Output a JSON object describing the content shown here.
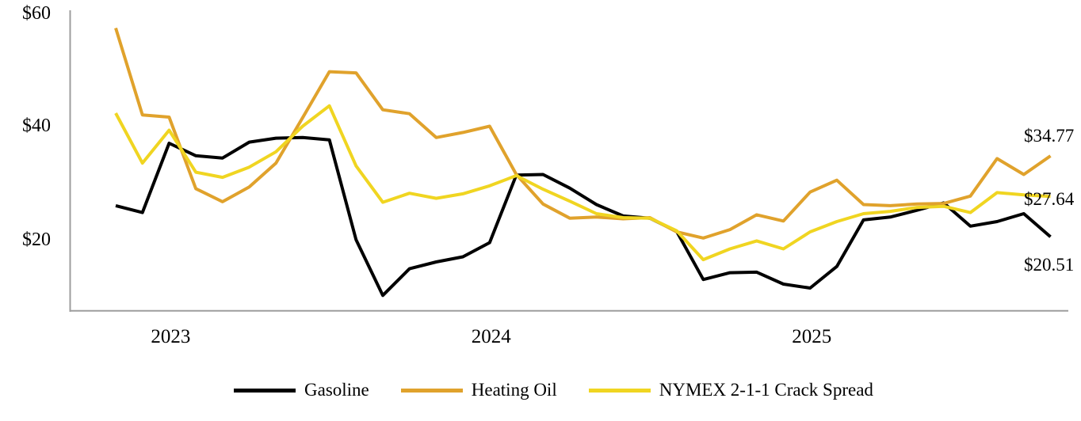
{
  "chart_data": {
    "type": "line",
    "title": "",
    "xlabel": "",
    "ylabel": "",
    "grid": false,
    "legend_position": "bottom",
    "ylim": [
      7.3,
      60
    ],
    "y_ticks": [
      {
        "label": "$60",
        "value": 60
      },
      {
        "label": "$40",
        "value": 40
      },
      {
        "label": "$20",
        "value": 20
      }
    ],
    "x_axis_ticks": [
      {
        "label": "2023",
        "month_index": 2
      },
      {
        "label": "2024",
        "month_index": 14
      },
      {
        "label": "2025",
        "month_index": 26
      }
    ],
    "x": [
      "2022-11",
      "2022-12",
      "2023-01",
      "2023-02",
      "2023-03",
      "2023-04",
      "2023-05",
      "2023-06",
      "2023-07",
      "2023-08",
      "2023-09",
      "2023-10",
      "2023-11",
      "2023-12",
      "2024-01",
      "2024-02",
      "2024-03",
      "2024-04",
      "2024-05",
      "2024-06",
      "2024-07",
      "2024-08",
      "2024-09",
      "2024-10",
      "2024-11",
      "2024-12",
      "2025-01",
      "2025-02",
      "2025-03",
      "2025-04",
      "2025-05",
      "2025-06",
      "2025-07",
      "2025-08",
      "2025-09",
      "2025-10"
    ],
    "series": [
      {
        "name": "Gasoline",
        "color": "#000000",
        "end_label": "$20.51",
        "values": [
          26.0,
          24.8,
          37.0,
          34.8,
          34.4,
          37.2,
          37.9,
          38.0,
          37.6,
          20.0,
          10.2,
          14.9,
          16.1,
          17.0,
          19.5,
          31.4,
          31.5,
          29.1,
          26.2,
          24.2,
          23.8,
          21.5,
          13.0,
          14.2,
          14.3,
          12.2,
          11.5,
          15.3,
          23.5,
          24.0,
          25.2,
          26.5,
          22.4,
          23.2,
          24.6,
          20.51
        ]
      },
      {
        "name": "Heating Oil",
        "color": "#E0A22C",
        "end_label": "$34.77",
        "values": [
          57.3,
          42.0,
          41.6,
          29.0,
          26.7,
          29.3,
          33.5,
          41.5,
          49.6,
          49.4,
          42.9,
          42.2,
          38.0,
          38.9,
          40.0,
          31.5,
          26.3,
          23.8,
          24.0,
          23.7,
          23.9,
          21.4,
          20.3,
          21.8,
          24.4,
          23.3,
          28.4,
          30.5,
          26.2,
          26.0,
          26.3,
          26.4,
          27.7,
          34.3,
          31.5,
          34.77
        ]
      },
      {
        "name": "NYMEX 2-1-1 Crack Spread",
        "color": "#F0D521",
        "end_label": "$27.64",
        "values": [
          42.3,
          33.5,
          39.3,
          31.9,
          31.0,
          32.8,
          35.5,
          40.0,
          43.6,
          33.0,
          26.6,
          28.2,
          27.3,
          28.1,
          29.5,
          31.3,
          28.9,
          26.8,
          24.6,
          23.9,
          23.8,
          21.6,
          16.5,
          18.4,
          19.8,
          18.4,
          21.4,
          23.2,
          24.6,
          25.0,
          25.7,
          25.9,
          24.8,
          28.3,
          27.9,
          27.64
        ]
      }
    ]
  },
  "colors": {
    "axis": "#9E9E9E",
    "text": "#000000",
    "background": "#FFFFFF"
  }
}
